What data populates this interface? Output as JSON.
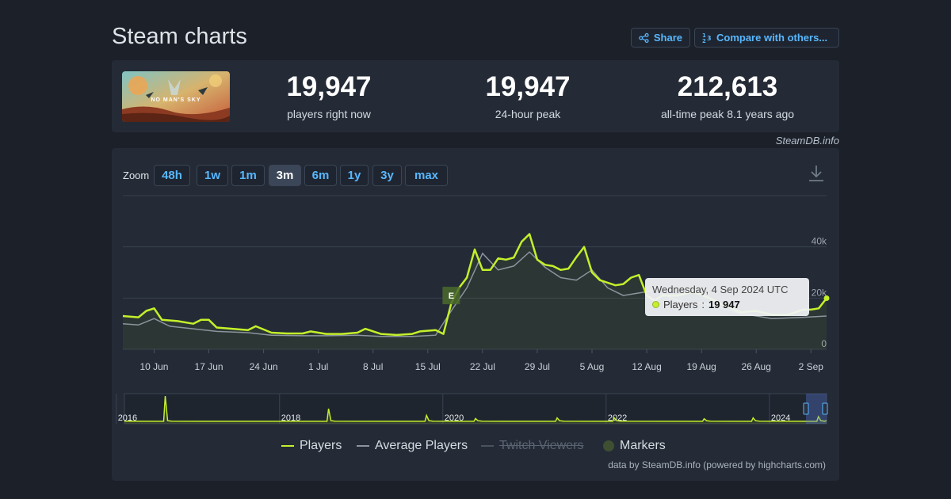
{
  "page": {
    "title": "Steam charts",
    "credit": "SteamDB.info"
  },
  "actions": {
    "share_label": "Share",
    "compare_label": "Compare with others..."
  },
  "game": {
    "logo_text": "NO MAN'S SKY"
  },
  "stats": [
    {
      "value": "19,947",
      "label": "players right now"
    },
    {
      "value": "19,947",
      "label": "24-hour peak"
    },
    {
      "value": "212,613",
      "label": "all-time peak 8.1 years ago"
    }
  ],
  "zoom": {
    "label": "Zoom",
    "options": [
      "48h",
      "1w",
      "1m",
      "3m",
      "6m",
      "1y",
      "3y",
      "max"
    ],
    "selected": "3m"
  },
  "tooltip": {
    "date": "Wednesday, 4 Sep 2024 UTC",
    "series": "Players",
    "value": "19 947"
  },
  "legend": [
    {
      "name": "Players",
      "color": "#c3f02a",
      "visible": true
    },
    {
      "name": "Average Players",
      "color": "#8c949e",
      "visible": true
    },
    {
      "name": "Twitch Viewers",
      "color": "#6a7380",
      "visible": false
    },
    {
      "name": "Markers",
      "color": "#3e4f32",
      "visible": true
    }
  ],
  "footer_credit": "data by SteamDB.info (powered by highcharts.com)",
  "colors": {
    "players": "#c3f02a",
    "average": "#8c949e",
    "accent": "#58b7ff",
    "background": "#1b2029",
    "panel": "#242b36"
  },
  "chart_data": {
    "type": "line",
    "x_axis": {
      "start": "2024-06-06",
      "end": "2024-09-04",
      "tick_labels": [
        "10 Jun",
        "17 Jun",
        "24 Jun",
        "1 Jul",
        "8 Jul",
        "15 Jul",
        "22 Jul",
        "29 Jul",
        "5 Aug",
        "12 Aug",
        "19 Aug",
        "26 Aug",
        "2 Sep"
      ]
    },
    "y_axis": {
      "tick_labels": [
        "0",
        "20k",
        "40k"
      ],
      "ticks": [
        0,
        20000,
        40000
      ],
      "ylim": [
        0,
        60000
      ]
    },
    "grid": true,
    "legend_position": "bottom",
    "series": [
      {
        "name": "Players",
        "x": [
          "2024-06-06",
          "2024-06-08",
          "2024-06-09",
          "2024-06-10",
          "2024-06-11",
          "2024-06-13",
          "2024-06-15",
          "2024-06-16",
          "2024-06-17",
          "2024-06-18",
          "2024-06-20",
          "2024-06-22",
          "2024-06-23",
          "2024-06-25",
          "2024-06-27",
          "2024-06-29",
          "2024-06-30",
          "2024-07-02",
          "2024-07-04",
          "2024-07-06",
          "2024-07-07",
          "2024-07-09",
          "2024-07-11",
          "2024-07-13",
          "2024-07-14",
          "2024-07-16",
          "2024-07-17",
          "2024-07-18",
          "2024-07-19",
          "2024-07-20",
          "2024-07-21",
          "2024-07-22",
          "2024-07-23",
          "2024-07-24",
          "2024-07-25",
          "2024-07-26",
          "2024-07-27",
          "2024-07-28",
          "2024-07-29",
          "2024-07-30",
          "2024-07-31",
          "2024-08-01",
          "2024-08-02",
          "2024-08-03",
          "2024-08-04",
          "2024-08-05",
          "2024-08-06",
          "2024-08-07",
          "2024-08-08",
          "2024-08-09",
          "2024-08-10",
          "2024-08-11",
          "2024-08-12",
          "2024-08-13",
          "2024-08-14",
          "2024-08-16",
          "2024-08-18",
          "2024-08-20",
          "2024-08-22",
          "2024-08-24",
          "2024-08-26",
          "2024-08-28",
          "2024-08-30",
          "2024-09-01",
          "2024-09-02",
          "2024-09-03",
          "2024-09-04"
        ],
        "y": [
          13000,
          12500,
          15000,
          16000,
          11500,
          11000,
          10000,
          11500,
          11500,
          8500,
          8000,
          7500,
          9000,
          6500,
          6200,
          6200,
          7000,
          6000,
          6000,
          6500,
          8000,
          6000,
          5600,
          6000,
          7000,
          7500,
          6000,
          18000,
          24000,
          28000,
          39000,
          31000,
          31000,
          35500,
          35000,
          35800,
          42000,
          45000,
          35000,
          33000,
          32500,
          31000,
          31500,
          36000,
          40000,
          30000,
          27000,
          26000,
          25000,
          25500,
          28000,
          29000,
          21000,
          19000,
          21000,
          21000,
          22500,
          20000,
          17000,
          14500,
          15000,
          13500,
          13500,
          15500,
          15500,
          16000,
          19947
        ]
      },
      {
        "name": "Average Players",
        "x": [
          "2024-06-06",
          "2024-06-08",
          "2024-06-10",
          "2024-06-12",
          "2024-06-15",
          "2024-06-18",
          "2024-06-22",
          "2024-06-25",
          "2024-06-29",
          "2024-07-02",
          "2024-07-06",
          "2024-07-09",
          "2024-07-13",
          "2024-07-16",
          "2024-07-18",
          "2024-07-20",
          "2024-07-22",
          "2024-07-24",
          "2024-07-26",
          "2024-07-28",
          "2024-07-30",
          "2024-08-01",
          "2024-08-03",
          "2024-08-05",
          "2024-08-07",
          "2024-08-09",
          "2024-08-11",
          "2024-08-13",
          "2024-08-16",
          "2024-08-20",
          "2024-08-24",
          "2024-08-28",
          "2024-09-01",
          "2024-09-04"
        ],
        "y": [
          10000,
          9500,
          12000,
          9000,
          8000,
          7000,
          6500,
          5500,
          5300,
          5300,
          5500,
          5000,
          5000,
          5500,
          15000,
          24000,
          37500,
          31000,
          32500,
          38000,
          32000,
          28000,
          27000,
          31000,
          24000,
          21000,
          22000,
          23000,
          19000,
          17500,
          14000,
          12000,
          12500,
          13000
        ]
      }
    ],
    "markers": [
      {
        "x": "2024-07-18",
        "label": "E"
      }
    ],
    "tooltip": {
      "date": "Wednesday, 4 Sep 2024 UTC",
      "series": "Players",
      "value": 19947
    },
    "navigator": {
      "year_labels": [
        "2016",
        "2018",
        "2020",
        "2022",
        "2024"
      ],
      "peaks": [
        {
          "year": 2016.6,
          "value": 212613
        },
        {
          "year": 2018.6,
          "value": 110000
        },
        {
          "year": 2019.8,
          "value": 55000
        },
        {
          "year": 2020.4,
          "value": 30000
        },
        {
          "year": 2021.4,
          "value": 35000
        },
        {
          "year": 2022.1,
          "value": 35000
        },
        {
          "year": 2023.2,
          "value": 28000
        },
        {
          "year": 2023.8,
          "value": 35000
        },
        {
          "year": 2024.6,
          "value": 45000
        }
      ]
    }
  }
}
